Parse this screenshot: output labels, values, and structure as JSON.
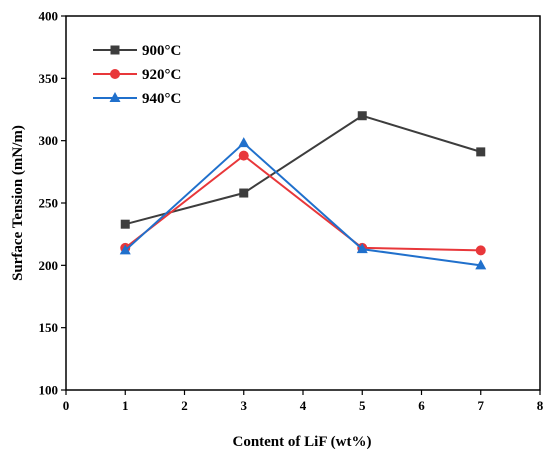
{
  "chart_data": {
    "type": "line",
    "title": "",
    "xlabel": "Content of LiF (wt%)",
    "ylabel": "Surface Tension (mN/m)",
    "xlim": [
      0,
      8
    ],
    "ylim": [
      100,
      400
    ],
    "xticks": [
      0,
      1,
      2,
      3,
      4,
      5,
      6,
      7,
      8
    ],
    "yticks": [
      100,
      150,
      200,
      250,
      300,
      350,
      400
    ],
    "grid": false,
    "legend_position": "top-left",
    "x": [
      1,
      3,
      5,
      7
    ],
    "series": [
      {
        "name": "900°C",
        "values": [
          233,
          258,
          320,
          291
        ],
        "color": "#3d3d3d",
        "marker": "square"
      },
      {
        "name": "920°C",
        "values": [
          214,
          288,
          214,
          212
        ],
        "color": "#e8373a",
        "marker": "circle"
      },
      {
        "name": "940°C",
        "values": [
          212,
          298,
          213,
          200
        ],
        "color": "#2070cc",
        "marker": "triangle"
      }
    ]
  }
}
